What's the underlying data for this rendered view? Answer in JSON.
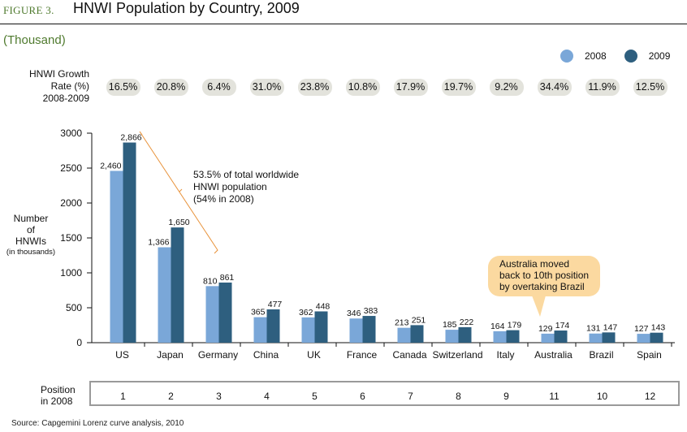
{
  "header": {
    "figure_label": "FIGURE 3.",
    "title": "HNWI Population by Country, 2009",
    "unit": "(Thousand)"
  },
  "legend": [
    {
      "label": "2008",
      "color": "#7aa7d8"
    },
    {
      "label": "2009",
      "color": "#2e5f7f"
    }
  ],
  "growth": {
    "label_lines": [
      "HNWI Growth",
      "Rate (%)",
      "2008-2009"
    ],
    "values": [
      "16.5%",
      "20.8%",
      "6.4%",
      "31.0%",
      "23.8%",
      "10.8%",
      "17.9%",
      "19.7%",
      "9.2%",
      "34.4%",
      "11.9%",
      "12.5%"
    ]
  },
  "ylabel": {
    "lines": [
      "Number",
      "of",
      "HNWIs"
    ],
    "sub": "(in thousands)"
  },
  "annotations": {
    "bracket_text": [
      "53.5% of total worldwide",
      "HNWI population",
      "(54% in 2008)"
    ],
    "callout_text": [
      "Australia moved",
      "back to 10th position",
      "by overtaking Brazil"
    ]
  },
  "positions": {
    "label_lines": [
      "Position",
      "in 2008"
    ],
    "values": [
      "1",
      "2",
      "3",
      "4",
      "5",
      "6",
      "7",
      "8",
      "9",
      "11",
      "10",
      "12"
    ]
  },
  "source": "Source: Capgemini Lorenz curve analysis, 2010",
  "chart_data": {
    "type": "bar",
    "title": "HNWI Population by Country, 2009",
    "xlabel": "",
    "ylabel": "Number of HNWIs (in thousands)",
    "ylim": [
      0,
      3000
    ],
    "yticks": [
      0,
      500,
      1000,
      1500,
      2000,
      2500,
      3000
    ],
    "categories": [
      "US",
      "Japan",
      "Germany",
      "China",
      "UK",
      "France",
      "Canada",
      "Switzerland",
      "Italy",
      "Australia",
      "Brazil",
      "Spain"
    ],
    "series": [
      {
        "name": "2008",
        "color": "#7aa7d8",
        "values": [
          2460,
          1366,
          810,
          365,
          362,
          346,
          213,
          185,
          164,
          129,
          131,
          127
        ],
        "labels": [
          "2,460",
          "1,366",
          "810",
          "365",
          "362",
          "346",
          "213",
          "185",
          "164",
          "129",
          "131",
          "127"
        ]
      },
      {
        "name": "2009",
        "color": "#2e5f7f",
        "values": [
          2866,
          1650,
          861,
          477,
          448,
          383,
          251,
          222,
          179,
          174,
          147,
          143
        ],
        "labels": [
          "2,866",
          "1,650",
          "861",
          "477",
          "448",
          "383",
          "251",
          "222",
          "179",
          "174",
          "147",
          "143"
        ]
      }
    ],
    "legend_position": "top-right",
    "grid": false
  }
}
